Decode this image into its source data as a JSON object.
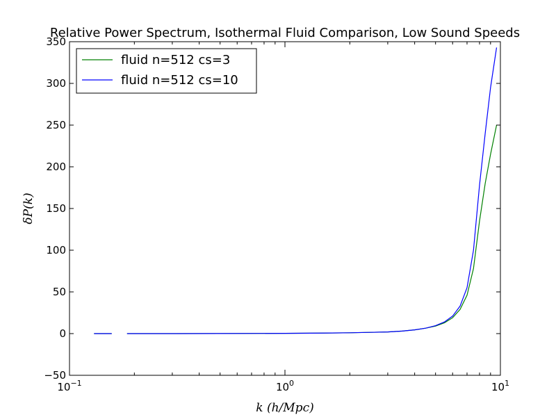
{
  "chart_data": {
    "type": "line",
    "title": "Relative Power Spectrum, Isothermal Fluid Comparison, Low Sound Speeds",
    "xlabel": "k (h/Mpc)",
    "ylabel": "δP(k)",
    "xscale": "log",
    "xlim": [
      0.1,
      10
    ],
    "ylim": [
      -50,
      350
    ],
    "x_ticks": [
      {
        "value": 0.1,
        "base": "10",
        "exp": "−1"
      },
      {
        "value": 1,
        "base": "10",
        "exp": "0"
      },
      {
        "value": 10,
        "base": "10",
        "exp": "1"
      }
    ],
    "y_ticks": [
      {
        "value": -50,
        "label": "−50"
      },
      {
        "value": 0,
        "label": "0"
      },
      {
        "value": 50,
        "label": "50"
      },
      {
        "value": 100,
        "label": "100"
      },
      {
        "value": 150,
        "label": "150"
      },
      {
        "value": 200,
        "label": "200"
      },
      {
        "value": 250,
        "label": "250"
      },
      {
        "value": 300,
        "label": "300"
      },
      {
        "value": 350,
        "label": "350"
      }
    ],
    "grid": false,
    "legend_position": "top-left",
    "series": [
      {
        "name": "fluid n=512 cs=3",
        "color": "#008000",
        "segments": [
          [
            [
              0.13,
              0
            ],
            [
              0.157,
              0
            ]
          ],
          [
            [
              0.185,
              0
            ],
            [
              0.3,
              0
            ],
            [
              0.5,
              0.1
            ],
            [
              1.0,
              0.3
            ],
            [
              1.5,
              0.6
            ],
            [
              2.0,
              1.0
            ],
            [
              2.5,
              1.5
            ],
            [
              3.0,
              2.0
            ],
            [
              3.5,
              3.0
            ],
            [
              4.0,
              4.5
            ],
            [
              4.5,
              6.5
            ],
            [
              5.0,
              9.0
            ],
            [
              5.5,
              13
            ],
            [
              6.0,
              19
            ],
            [
              6.5,
              29
            ],
            [
              7.0,
              46
            ],
            [
              7.5,
              78
            ],
            [
              8.0,
              135
            ],
            [
              8.5,
              180
            ],
            [
              9.0,
              215
            ],
            [
              9.6,
              250
            ]
          ]
        ]
      },
      {
        "name": "fluid n=512 cs=10",
        "color": "#0000ff",
        "segments": [
          [
            [
              0.13,
              0
            ],
            [
              0.157,
              0
            ]
          ],
          [
            [
              0.185,
              0
            ],
            [
              0.3,
              0
            ],
            [
              0.5,
              0.1
            ],
            [
              1.0,
              0.3
            ],
            [
              1.5,
              0.6
            ],
            [
              2.0,
              1.0
            ],
            [
              2.5,
              1.5
            ],
            [
              3.0,
              2.0
            ],
            [
              3.5,
              3.0
            ],
            [
              4.0,
              4.5
            ],
            [
              4.5,
              6.5
            ],
            [
              5.0,
              9.5
            ],
            [
              5.5,
              14
            ],
            [
              6.0,
              21
            ],
            [
              6.5,
              33
            ],
            [
              7.0,
              55
            ],
            [
              7.5,
              100
            ],
            [
              8.0,
              178
            ],
            [
              8.5,
              240
            ],
            [
              9.0,
              295
            ],
            [
              9.6,
              343
            ]
          ]
        ]
      }
    ]
  }
}
